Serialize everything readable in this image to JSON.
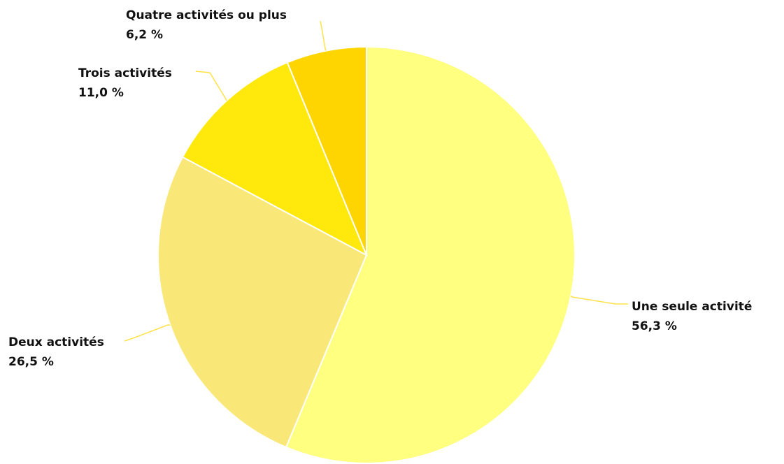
{
  "chart_data": {
    "type": "pie",
    "start_angle_deg": 0,
    "direction": "clockwise",
    "slices": [
      {
        "label": "Une seule activité",
        "value": 56.3,
        "value_text": "56,3 %",
        "color": "#FFFF80"
      },
      {
        "label": "Deux activités",
        "value": 26.5,
        "value_text": "26,5 %",
        "color": "#F9E878"
      },
      {
        "label": "Trois activités",
        "value": 11.0,
        "value_text": "11,0 %",
        "color": "#FFE90C"
      },
      {
        "label": "Quatre activités ou plus",
        "value": 6.2,
        "value_text": "6,2 %",
        "color": "#FFD500"
      }
    ],
    "leader_line_color": "#FFE24A",
    "border_color": "#FFFFFF"
  }
}
